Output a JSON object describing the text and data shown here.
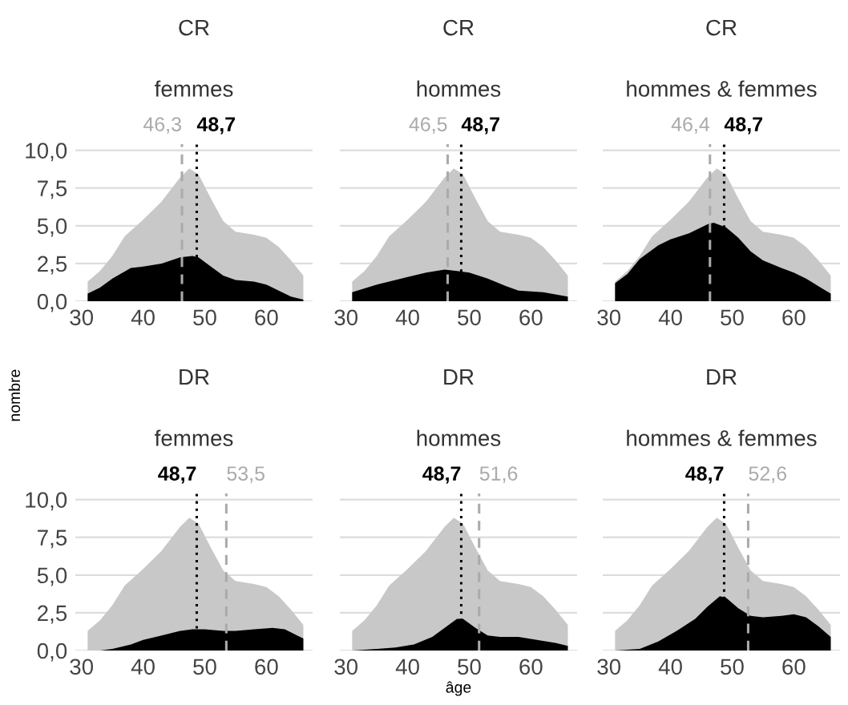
{
  "chart_data": [
    {
      "type": "area",
      "title": "CR",
      "subtitle": "femmes",
      "ylabel": "nombre",
      "xlim": [
        29,
        67.5
      ],
      "ylim": [
        0,
        10.4
      ],
      "xticks": [
        30,
        40,
        50,
        60
      ],
      "yticks": [
        {
          "value": 0,
          "label": "0,0"
        },
        {
          "value": 2.5,
          "label": "2,5"
        },
        {
          "value": 5,
          "label": "5,0"
        },
        {
          "value": 7.5,
          "label": "7,5"
        },
        {
          "value": 10,
          "label": "10,0"
        }
      ],
      "grid": "y",
      "series": [
        {
          "color": "#c8c8c8",
          "x": [
            31,
            33,
            35,
            37,
            40,
            43,
            46,
            47.5,
            49,
            51,
            53,
            55,
            58,
            60,
            62,
            64,
            66
          ],
          "values": [
            1.3,
            2.0,
            3.0,
            4.3,
            5.4,
            6.6,
            8.2,
            8.8,
            8.4,
            6.8,
            5.3,
            4.6,
            4.4,
            4.2,
            3.6,
            2.7,
            1.7
          ]
        },
        {
          "color": "#000000",
          "x": [
            31,
            33,
            35,
            38,
            40,
            43,
            46,
            48,
            49,
            51,
            53,
            55,
            58,
            60,
            62,
            64,
            66
          ],
          "values": [
            0.5,
            0.9,
            1.5,
            2.2,
            2.3,
            2.5,
            2.9,
            3.0,
            2.9,
            2.3,
            1.7,
            1.4,
            1.3,
            1.1,
            0.7,
            0.3,
            0.1
          ]
        }
      ],
      "ref_lines": [
        {
          "axis": "x",
          "value": 46.3,
          "label": "46,3",
          "color": "#aaaaaa",
          "line_style": "dashed"
        },
        {
          "axis": "x",
          "value": 48.7,
          "label": "48,7",
          "color": "#000000",
          "line_style": "dotted"
        }
      ]
    },
    {
      "type": "area",
      "title": "CR",
      "subtitle": "hommes",
      "tick_labels": "x",
      "xlim": [
        29,
        67.5
      ],
      "ylim": [
        0,
        10.4
      ],
      "xticks": [
        30,
        40,
        50,
        60
      ],
      "yticks": [
        {
          "value": 0,
          "label": null
        },
        {
          "value": 2.5,
          "label": null
        },
        {
          "value": 5,
          "label": null
        },
        {
          "value": 7.5,
          "label": null
        },
        {
          "value": 10,
          "label": null
        }
      ],
      "grid": "y",
      "series": [
        {
          "color": "#c8c8c8",
          "x": [
            31,
            33,
            35,
            37,
            40,
            43,
            46,
            47.5,
            49,
            51,
            53,
            55,
            58,
            60,
            62,
            64,
            66
          ],
          "values": [
            1.3,
            2.0,
            3.0,
            4.3,
            5.4,
            6.6,
            8.2,
            8.8,
            8.4,
            6.8,
            5.3,
            4.6,
            4.4,
            4.2,
            3.6,
            2.7,
            1.7
          ]
        },
        {
          "color": "#000000",
          "x": [
            31,
            35,
            40,
            43,
            46,
            48,
            50,
            53,
            56,
            58,
            62,
            66
          ],
          "values": [
            0.6,
            1.1,
            1.6,
            1.9,
            2.1,
            2.0,
            1.9,
            1.5,
            1.0,
            0.7,
            0.6,
            0.3
          ]
        }
      ],
      "ref_lines": [
        {
          "axis": "x",
          "value": 46.5,
          "label": "46,5",
          "color": "#aaaaaa",
          "line_style": "dashed"
        },
        {
          "axis": "x",
          "value": 48.7,
          "label": "48,7",
          "color": "#000000",
          "line_style": "dotted"
        }
      ]
    },
    {
      "type": "area",
      "title": "CR",
      "subtitle": "hommes & femmes",
      "tick_labels": "x",
      "xlim": [
        29,
        67.5
      ],
      "ylim": [
        0,
        10.4
      ],
      "xticks": [
        30,
        40,
        50,
        60
      ],
      "yticks": [
        {
          "value": 0,
          "label": null
        },
        {
          "value": 2.5,
          "label": null
        },
        {
          "value": 5,
          "label": null
        },
        {
          "value": 7.5,
          "label": null
        },
        {
          "value": 10,
          "label": null
        }
      ],
      "grid": "y",
      "series": [
        {
          "color": "#c8c8c8",
          "x": [
            31,
            33,
            35,
            37,
            40,
            43,
            46,
            47.5,
            49,
            51,
            53,
            55,
            58,
            60,
            62,
            64,
            66
          ],
          "values": [
            1.3,
            2.0,
            3.0,
            4.3,
            5.4,
            6.6,
            8.2,
            8.8,
            8.4,
            6.8,
            5.3,
            4.6,
            4.4,
            4.2,
            3.6,
            2.7,
            1.7
          ]
        },
        {
          "color": "#000000",
          "x": [
            31,
            33,
            35,
            38,
            40,
            43,
            46,
            47,
            49,
            51,
            53,
            55,
            58,
            60,
            62,
            64,
            66
          ],
          "values": [
            1.2,
            1.8,
            2.8,
            3.7,
            4.1,
            4.5,
            5.1,
            5.2,
            4.9,
            4.2,
            3.3,
            2.7,
            2.2,
            1.9,
            1.5,
            1.0,
            0.5
          ]
        }
      ],
      "ref_lines": [
        {
          "axis": "x",
          "value": 46.4,
          "label": "46,4",
          "color": "#aaaaaa",
          "line_style": "dashed"
        },
        {
          "axis": "x",
          "value": 48.7,
          "label": "48,7",
          "color": "#000000",
          "line_style": "dotted"
        }
      ]
    },
    {
      "type": "area",
      "title": "DR",
      "subtitle": "femmes",
      "xlim": [
        29,
        67.5
      ],
      "ylim": [
        0,
        10.4
      ],
      "xticks": [
        30,
        40,
        50,
        60
      ],
      "yticks": [
        {
          "value": 0,
          "label": "0,0"
        },
        {
          "value": 2.5,
          "label": "2,5"
        },
        {
          "value": 5,
          "label": "5,0"
        },
        {
          "value": 7.5,
          "label": "7,5"
        },
        {
          "value": 10,
          "label": "10,0"
        }
      ],
      "grid": "y",
      "series": [
        {
          "color": "#c8c8c8",
          "x": [
            31,
            33,
            35,
            37,
            40,
            43,
            46,
            47.5,
            49,
            51,
            53,
            55,
            58,
            60,
            62,
            64,
            66
          ],
          "values": [
            1.3,
            2.0,
            3.0,
            4.3,
            5.4,
            6.6,
            8.2,
            8.8,
            8.4,
            6.8,
            5.3,
            4.6,
            4.4,
            4.2,
            3.6,
            2.7,
            1.7
          ]
        },
        {
          "color": "#000000",
          "x": [
            31,
            33,
            35,
            38,
            40,
            43,
            46,
            48,
            50,
            53,
            55,
            58,
            61,
            63,
            65,
            66
          ],
          "values": [
            0,
            0,
            0.1,
            0.4,
            0.7,
            1.0,
            1.3,
            1.4,
            1.4,
            1.3,
            1.3,
            1.4,
            1.5,
            1.4,
            1.0,
            0.8
          ]
        }
      ],
      "ref_lines": [
        {
          "axis": "x",
          "value": 48.7,
          "label": "48,7",
          "color": "#000000",
          "line_style": "dotted"
        },
        {
          "axis": "x",
          "value": 53.5,
          "label": "53,5",
          "color": "#aaaaaa",
          "line_style": "dashed"
        }
      ]
    },
    {
      "type": "area",
      "title": "DR",
      "subtitle": "hommes",
      "xlabel": "âge",
      "tick_labels": "x",
      "xlim": [
        29,
        67.5
      ],
      "ylim": [
        0,
        10.4
      ],
      "xticks": [
        30,
        40,
        50,
        60
      ],
      "yticks": [
        {
          "value": 0,
          "label": null
        },
        {
          "value": 2.5,
          "label": null
        },
        {
          "value": 5,
          "label": null
        },
        {
          "value": 7.5,
          "label": null
        },
        {
          "value": 10,
          "label": null
        }
      ],
      "grid": "y",
      "series": [
        {
          "color": "#c8c8c8",
          "x": [
            31,
            33,
            35,
            37,
            40,
            43,
            46,
            47.5,
            49,
            51,
            53,
            55,
            58,
            60,
            62,
            64,
            66
          ],
          "values": [
            1.3,
            2.0,
            3.0,
            4.3,
            5.4,
            6.6,
            8.2,
            8.8,
            8.4,
            6.8,
            5.3,
            4.6,
            4.4,
            4.2,
            3.6,
            2.7,
            1.7
          ]
        },
        {
          "color": "#000000",
          "x": [
            31,
            35,
            38,
            41,
            44,
            46,
            48,
            49,
            51,
            53,
            55,
            58,
            61,
            64,
            66
          ],
          "values": [
            0,
            0.1,
            0.2,
            0.4,
            0.9,
            1.5,
            2.1,
            2.1,
            1.5,
            1.0,
            0.9,
            0.9,
            0.7,
            0.5,
            0.3
          ]
        }
      ],
      "ref_lines": [
        {
          "axis": "x",
          "value": 48.7,
          "label": "48,7",
          "color": "#000000",
          "line_style": "dotted"
        },
        {
          "axis": "x",
          "value": 51.6,
          "label": "51,6",
          "color": "#aaaaaa",
          "line_style": "dashed"
        }
      ]
    },
    {
      "type": "area",
      "title": "DR",
      "subtitle": "hommes & femmes",
      "tick_labels": "x",
      "xlim": [
        29,
        67.5
      ],
      "ylim": [
        0,
        10.4
      ],
      "xticks": [
        30,
        40,
        50,
        60
      ],
      "yticks": [
        {
          "value": 0,
          "label": null
        },
        {
          "value": 2.5,
          "label": null
        },
        {
          "value": 5,
          "label": null
        },
        {
          "value": 7.5,
          "label": null
        },
        {
          "value": 10,
          "label": null
        }
      ],
      "grid": "y",
      "series": [
        {
          "color": "#c8c8c8",
          "x": [
            31,
            33,
            35,
            37,
            40,
            43,
            46,
            47.5,
            49,
            51,
            53,
            55,
            58,
            60,
            62,
            64,
            66
          ],
          "values": [
            1.3,
            2.0,
            3.0,
            4.3,
            5.4,
            6.6,
            8.2,
            8.8,
            8.4,
            6.8,
            5.3,
            4.6,
            4.4,
            4.2,
            3.6,
            2.7,
            1.7
          ]
        },
        {
          "color": "#000000",
          "x": [
            31,
            35,
            38,
            41,
            44,
            46,
            48,
            49,
            51,
            53,
            55,
            58,
            60,
            62,
            64,
            66
          ],
          "values": [
            0,
            0.1,
            0.6,
            1.3,
            2.1,
            2.9,
            3.6,
            3.5,
            2.8,
            2.3,
            2.2,
            2.3,
            2.4,
            2.2,
            1.6,
            0.9
          ]
        }
      ],
      "ref_lines": [
        {
          "axis": "x",
          "value": 48.7,
          "label": "48,7",
          "color": "#000000",
          "line_style": "dotted"
        },
        {
          "axis": "x",
          "value": 52.6,
          "label": "52,6",
          "color": "#aaaaaa",
          "line_style": "dashed"
        }
      ]
    }
  ]
}
